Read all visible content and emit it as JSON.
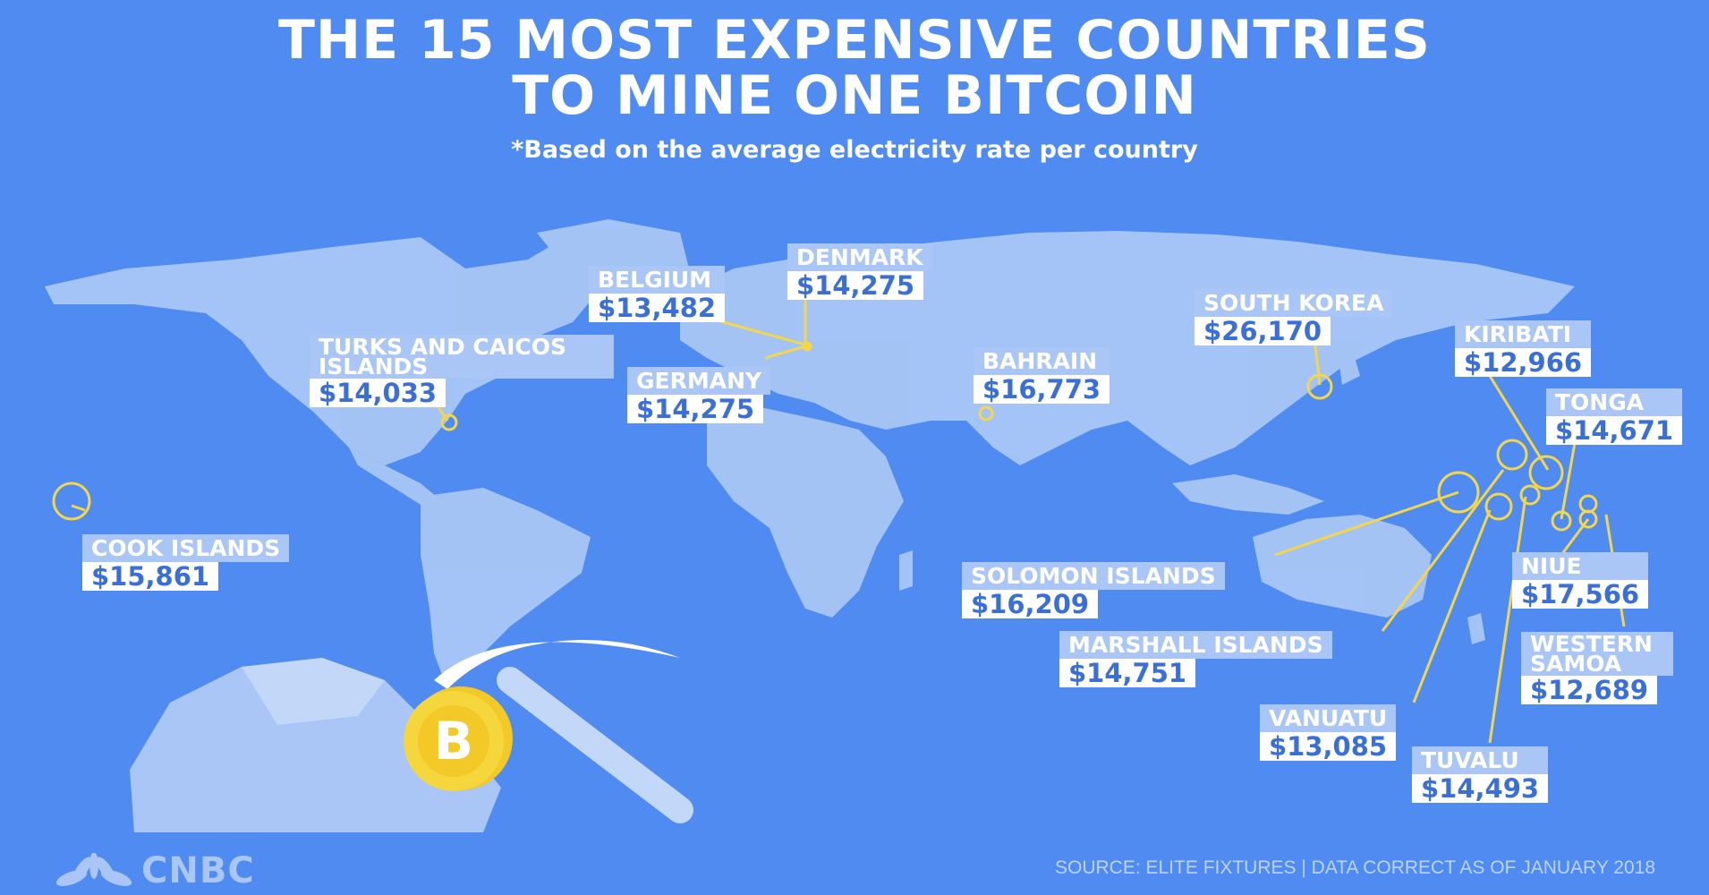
{
  "title_line1": "THE 15 MOST EXPENSIVE COUNTRIES",
  "title_line2": "TO MINE ONE BITCOIN",
  "subtitle": "*Based on the average electricity rate per country",
  "labels": {
    "belgium": {
      "name": "BELGIUM",
      "value": "$13,482"
    },
    "denmark": {
      "name": "DENMARK",
      "value": "$14,275"
    },
    "south_korea": {
      "name": "SOUTH KOREA",
      "value": "$26,170"
    },
    "turks": {
      "name": "TURKS AND CAICOS ISLANDS",
      "value": "$14,033"
    },
    "germany": {
      "name": "GERMANY",
      "value": "$14,275"
    },
    "bahrain": {
      "name": "BAHRAIN",
      "value": "$16,773"
    },
    "kiribati": {
      "name": "KIRIBATI",
      "value": "$12,966"
    },
    "tonga": {
      "name": "TONGA",
      "value": "$14,671"
    },
    "cook": {
      "name": "COOK ISLANDS",
      "value": "$15,861"
    },
    "solomon": {
      "name": "SOLOMON ISLANDS",
      "value": "$16,209"
    },
    "niue": {
      "name": "NIUE",
      "value": "$17,566"
    },
    "marshall": {
      "name": "MARSHALL ISLANDS",
      "value": "$14,751"
    },
    "samoa": {
      "name": "WESTERN SAMOA",
      "value": "$12,689"
    },
    "vanuatu": {
      "name": "VANUATU",
      "value": "$13,085"
    },
    "tuvalu": {
      "name": "TUVALU",
      "value": "$14,493"
    }
  },
  "logo": "CNBC",
  "source": "SOURCE: ELITE FIXTURES | DATA CORRECT AS OF JANUARY 2018",
  "colors": {
    "background": "#4f8bf0",
    "land": "#a9c6f6",
    "label_fill": "#a9c6f6",
    "value_text": "#3a6fd8",
    "marker": "#f3d64b"
  },
  "icons": {
    "pickaxe": "pickaxe-icon",
    "bitcoin": "bitcoin-coin-icon",
    "rock": "rock-icon"
  }
}
